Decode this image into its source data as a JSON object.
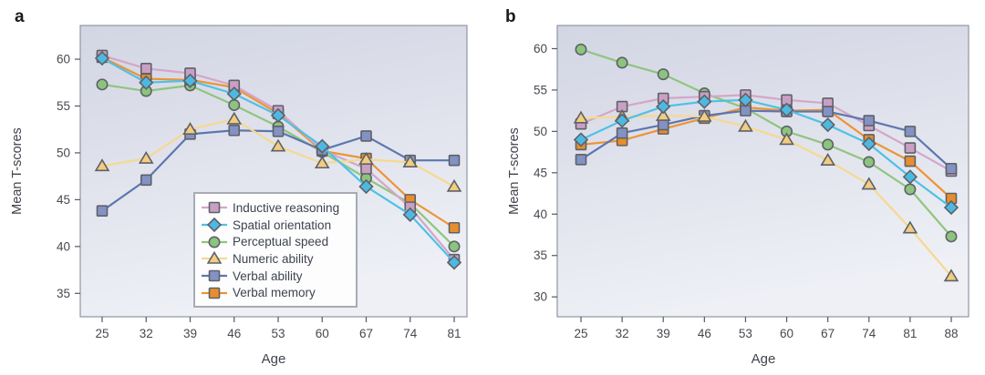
{
  "figure": {
    "panels": [
      {
        "letter": "a",
        "ylabel": "Mean T-scores",
        "xlabel": "Age"
      },
      {
        "letter": "b",
        "ylabel": "Mean T-scores",
        "xlabel": "Age"
      }
    ]
  },
  "legend": {
    "position": "inside panel a, lower center",
    "items": [
      {
        "label": "Inductive reasoning"
      },
      {
        "label": "Spatial orientation"
      },
      {
        "label": "Perceptual speed"
      },
      {
        "label": "Numeric ability"
      },
      {
        "label": "Verbal ability"
      },
      {
        "label": "Verbal memory"
      }
    ]
  },
  "style": {
    "plot_bg_gradient_top": "#d2d5e3",
    "plot_bg_gradient_bottom": "#eef0f6",
    "plot_border": "#9096a1",
    "tick_color": "#55585e",
    "tick_label_color": "#45494f",
    "marker_stroke": "#5e6168"
  },
  "chart_data": [
    {
      "type": "line",
      "panel": "a",
      "xlabel": "Age",
      "ylabel": "Mean T-scores",
      "categories": [
        25,
        32,
        39,
        46,
        53,
        60,
        67,
        74,
        81
      ],
      "yticks": [
        35,
        40,
        45,
        50,
        55,
        60
      ],
      "ylim": [
        32.5,
        63.6
      ],
      "grid": false,
      "legend_shown": true,
      "draw_order": [
        2,
        5,
        0,
        4,
        3,
        1
      ],
      "series": [
        {
          "name": "Inductive reasoning",
          "marker": "square",
          "line_color": "#d4a6c8",
          "fill_color": "#c9a0c3",
          "values": [
            60.4,
            59.0,
            58.5,
            57.2,
            54.5,
            50.3,
            48.3,
            44.2,
            38.6
          ]
        },
        {
          "name": "Spatial orientation",
          "marker": "diamond",
          "line_color": "#4fc1e5",
          "fill_color": "#4db9e2",
          "values": [
            60.1,
            57.5,
            57.7,
            56.3,
            54.0,
            50.7,
            46.4,
            43.4,
            38.3
          ]
        },
        {
          "name": "Perceptual speed",
          "marker": "circle",
          "line_color": "#8fc57e",
          "fill_color": "#8cc47d",
          "values": [
            57.3,
            56.6,
            57.2,
            55.1,
            52.8,
            50.1,
            47.3,
            44.6,
            40.0
          ]
        },
        {
          "name": "Numeric ability",
          "marker": "triangle",
          "line_color": "#f6d98e",
          "fill_color": "#f2cd80",
          "values": [
            48.6,
            49.4,
            52.5,
            53.6,
            50.7,
            48.9,
            49.3,
            49.0,
            46.4
          ]
        },
        {
          "name": "Verbal ability",
          "marker": "square",
          "line_color": "#5d76ae",
          "fill_color": "#8392c3",
          "values": [
            43.8,
            47.1,
            52.0,
            52.4,
            52.3,
            50.3,
            51.8,
            49.2,
            49.2
          ]
        },
        {
          "name": "Verbal memory",
          "marker": "square",
          "line_color": "#ed9435",
          "fill_color": "#e88d2d",
          "values": [
            60.2,
            57.9,
            57.8,
            57.0,
            54.2,
            50.2,
            49.4,
            45.0,
            42.0
          ]
        }
      ]
    },
    {
      "type": "line",
      "panel": "b",
      "xlabel": "Age",
      "ylabel": "Mean T-scores",
      "categories": [
        25,
        32,
        39,
        46,
        53,
        60,
        67,
        74,
        81,
        88
      ],
      "yticks": [
        30,
        35,
        40,
        45,
        50,
        55,
        60
      ],
      "ylim": [
        27.6,
        62.8
      ],
      "grid": false,
      "legend_shown": false,
      "draw_order": [
        2,
        5,
        0,
        4,
        3,
        1
      ],
      "series": [
        {
          "name": "Inductive reasoning",
          "marker": "square",
          "line_color": "#d4a6c8",
          "fill_color": "#c9a0c3",
          "values": [
            50.9,
            53.0,
            54.0,
            54.2,
            54.4,
            53.8,
            53.4,
            50.7,
            48.0,
            45.2
          ]
        },
        {
          "name": "Spatial orientation",
          "marker": "diamond",
          "line_color": "#4fc1e5",
          "fill_color": "#4db9e2",
          "values": [
            49.0,
            51.3,
            53.0,
            53.6,
            53.8,
            52.6,
            50.8,
            48.5,
            44.5,
            40.8
          ]
        },
        {
          "name": "Perceptual speed",
          "marker": "circle",
          "line_color": "#8fc57e",
          "fill_color": "#8cc47d",
          "values": [
            59.9,
            58.3,
            56.9,
            54.6,
            52.8,
            50.0,
            48.4,
            46.3,
            43.0,
            37.3
          ]
        },
        {
          "name": "Numeric ability",
          "marker": "triangle",
          "line_color": "#f6d98e",
          "fill_color": "#f2cd80",
          "values": [
            51.6,
            51.8,
            51.9,
            51.8,
            50.6,
            49.0,
            46.5,
            43.6,
            38.3,
            32.5
          ]
        },
        {
          "name": "Verbal ability",
          "marker": "square",
          "line_color": "#5d76ae",
          "fill_color": "#8392c3",
          "values": [
            46.6,
            49.8,
            50.8,
            51.9,
            52.5,
            52.4,
            52.4,
            51.3,
            50.0,
            45.5
          ]
        },
        {
          "name": "Verbal memory",
          "marker": "square",
          "line_color": "#ed9435",
          "fill_color": "#e88d2d",
          "values": [
            48.4,
            48.9,
            50.3,
            51.6,
            52.9,
            52.5,
            52.6,
            49.0,
            46.4,
            41.9
          ]
        }
      ]
    }
  ]
}
